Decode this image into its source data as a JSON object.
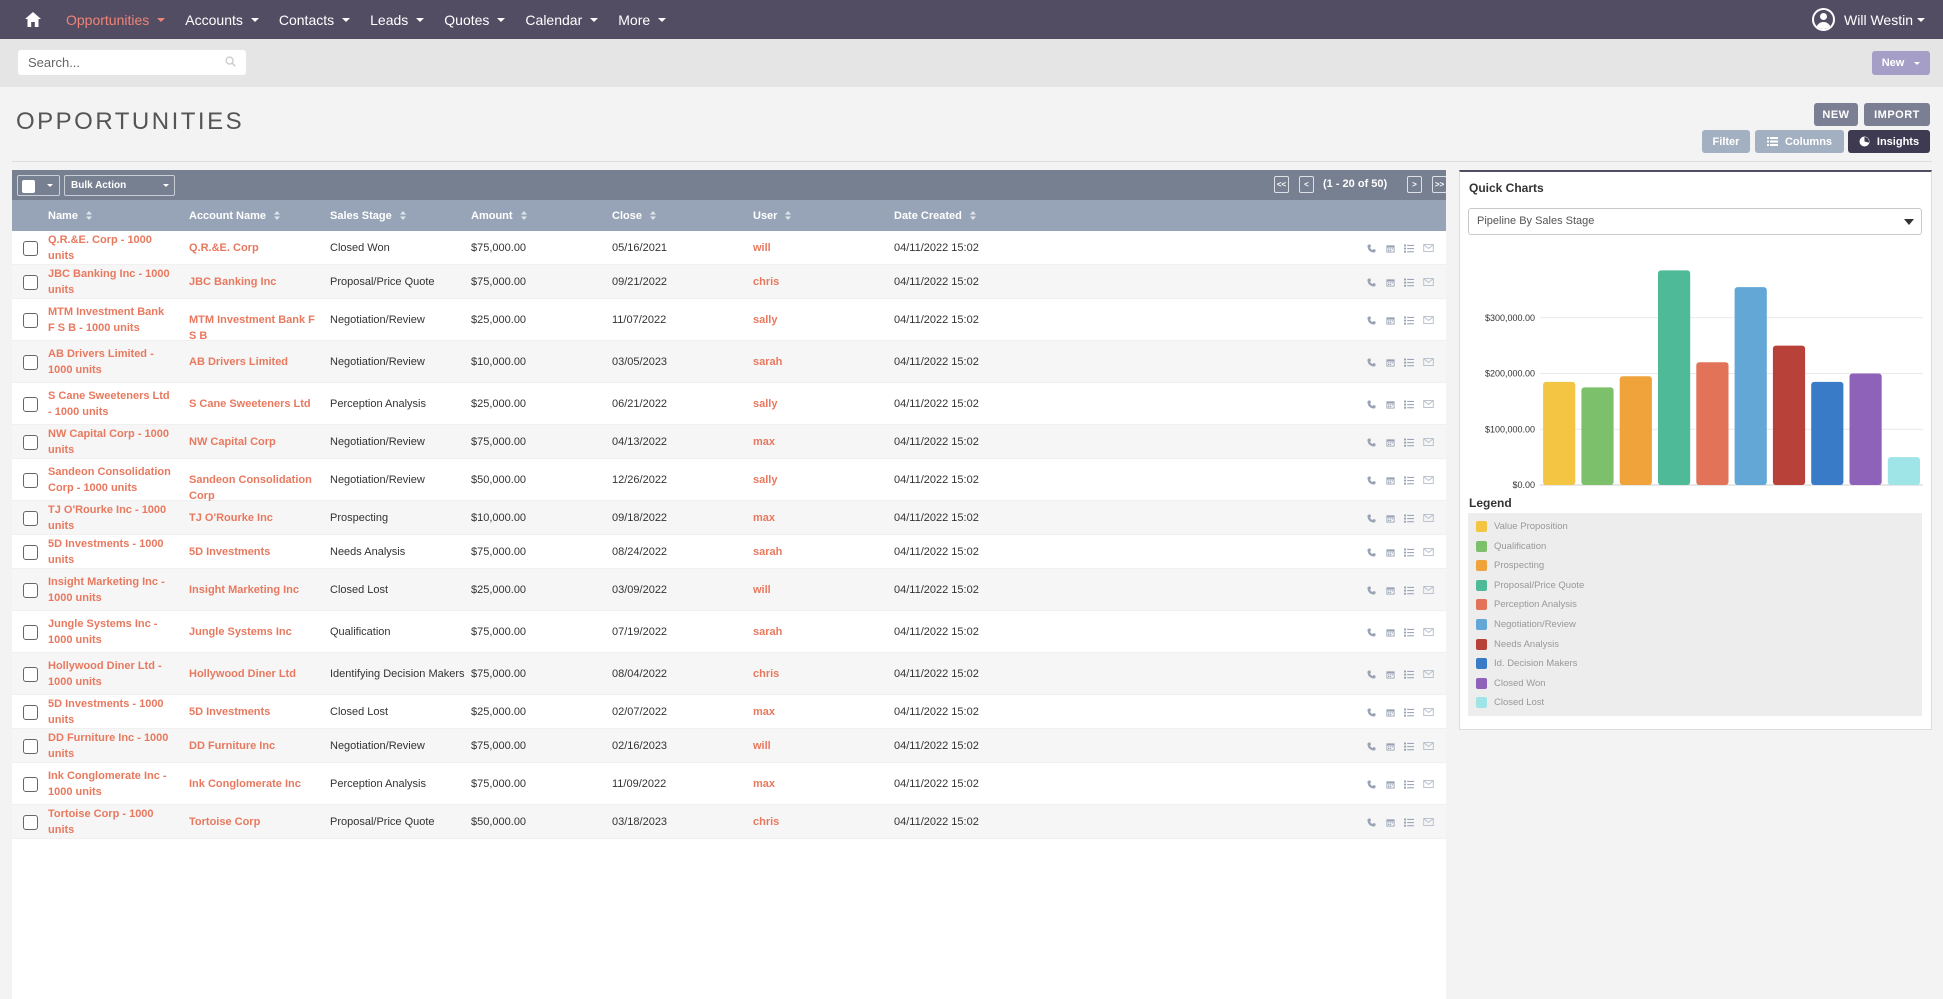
{
  "nav": {
    "items": [
      {
        "label": "Opportunities",
        "active": true
      },
      {
        "label": "Accounts",
        "active": false
      },
      {
        "label": "Contacts",
        "active": false
      },
      {
        "label": "Leads",
        "active": false
      },
      {
        "label": "Quotes",
        "active": false
      },
      {
        "label": "Calendar",
        "active": false
      },
      {
        "label": "More",
        "active": false
      }
    ],
    "user_name": "Will Westin"
  },
  "search": {
    "placeholder": "Search..."
  },
  "new_menu_label": "New",
  "page_title": "OPPORTUNITIES",
  "actions": {
    "new": "NEW",
    "import": "IMPORT",
    "filter": "Filter",
    "columns": "Columns",
    "insights": "Insights"
  },
  "list": {
    "bulk_action": "Bulk Action",
    "pagination": "(1 - 20 of 50)",
    "pager_buttons": [
      "<<",
      "<",
      ">",
      ">>"
    ],
    "columns": [
      "Name",
      "Account Name",
      "Sales Stage",
      "Amount",
      "Close",
      "User",
      "Date Created"
    ],
    "rows": [
      {
        "name": "Q.R.&E. Corp - 1000 units",
        "account": "Q.R.&E. Corp",
        "stage": "Closed Won",
        "amount": "$75,000.00",
        "close": "05/16/2021",
        "user": "will",
        "created": "04/11/2022 15:02"
      },
      {
        "name": "JBC Banking Inc - 1000 units",
        "account": "JBC Banking Inc",
        "stage": "Proposal/Price Quote",
        "amount": "$75,000.00",
        "close": "09/21/2022",
        "user": "chris",
        "created": "04/11/2022 15:02"
      },
      {
        "name": "MTM Investment Bank F S B - 1000 units",
        "account": "MTM Investment Bank F S B",
        "stage": "Negotiation/Review",
        "amount": "$25,000.00",
        "close": "11/07/2022",
        "user": "sally",
        "created": "04/11/2022 15:02"
      },
      {
        "name": "AB Drivers Limited - 1000 units",
        "account": "AB Drivers Limited",
        "stage": "Negotiation/Review",
        "amount": "$10,000.00",
        "close": "03/05/2023",
        "user": "sarah",
        "created": "04/11/2022 15:02"
      },
      {
        "name": "S Cane Sweeteners Ltd - 1000 units",
        "account": "S Cane Sweeteners Ltd",
        "stage": "Perception Analysis",
        "amount": "$25,000.00",
        "close": "06/21/2022",
        "user": "sally",
        "created": "04/11/2022 15:02"
      },
      {
        "name": "NW Capital Corp - 1000 units",
        "account": "NW Capital Corp",
        "stage": "Negotiation/Review",
        "amount": "$75,000.00",
        "close": "04/13/2022",
        "user": "max",
        "created": "04/11/2022 15:02"
      },
      {
        "name": "Sandeon Consolidation Corp - 1000 units",
        "account": "Sandeon Consolidation Corp",
        "stage": "Negotiation/Review",
        "amount": "$50,000.00",
        "close": "12/26/2022",
        "user": "sally",
        "created": "04/11/2022 15:02"
      },
      {
        "name": "TJ O'Rourke Inc - 1000 units",
        "account": "TJ O'Rourke Inc",
        "stage": "Prospecting",
        "amount": "$10,000.00",
        "close": "09/18/2022",
        "user": "max",
        "created": "04/11/2022 15:02"
      },
      {
        "name": "5D Investments - 1000 units",
        "account": "5D Investments",
        "stage": "Needs Analysis",
        "amount": "$75,000.00",
        "close": "08/24/2022",
        "user": "sarah",
        "created": "04/11/2022 15:02"
      },
      {
        "name": "Insight Marketing Inc - 1000 units",
        "account": "Insight Marketing Inc",
        "stage": "Closed Lost",
        "amount": "$25,000.00",
        "close": "03/09/2022",
        "user": "will",
        "created": "04/11/2022 15:02"
      },
      {
        "name": "Jungle Systems Inc - 1000 units",
        "account": "Jungle Systems Inc",
        "stage": "Qualification",
        "amount": "$75,000.00",
        "close": "07/19/2022",
        "user": "sarah",
        "created": "04/11/2022 15:02"
      },
      {
        "name": "Hollywood Diner Ltd - 1000 units",
        "account": "Hollywood Diner Ltd",
        "stage": "Identifying Decision Makers",
        "amount": "$75,000.00",
        "close": "08/04/2022",
        "user": "chris",
        "created": "04/11/2022 15:02"
      },
      {
        "name": "5D Investments - 1000 units",
        "account": "5D Investments",
        "stage": "Closed Lost",
        "amount": "$25,000.00",
        "close": "02/07/2022",
        "user": "max",
        "created": "04/11/2022 15:02"
      },
      {
        "name": "DD Furniture Inc - 1000 units",
        "account": "DD Furniture Inc",
        "stage": "Negotiation/Review",
        "amount": "$75,000.00",
        "close": "02/16/2023",
        "user": "will",
        "created": "04/11/2022 15:02"
      },
      {
        "name": "Ink Conglomerate Inc - 1000 units",
        "account": "Ink Conglomerate Inc",
        "stage": "Perception Analysis",
        "amount": "$75,000.00",
        "close": "11/09/2022",
        "user": "max",
        "created": "04/11/2022 15:02"
      },
      {
        "name": "Tortoise Corp - 1000 units",
        "account": "Tortoise Corp",
        "stage": "Proposal/Price Quote",
        "amount": "$50,000.00",
        "close": "03/18/2023",
        "user": "chris",
        "created": "04/11/2022 15:02"
      }
    ]
  },
  "quick_charts": {
    "title": "Quick Charts",
    "selected_chart": "Pipeline By Sales Stage",
    "legend_title": "Legend"
  },
  "chart_data": {
    "type": "bar",
    "title": "",
    "xlabel": "",
    "ylabel": "",
    "ylim": [
      0,
      400000
    ],
    "y_ticks": [
      "$0.00",
      "$100,000.00",
      "$200,000.00",
      "$300,000.00"
    ],
    "y_tick_values": [
      0,
      100000,
      200000,
      300000
    ],
    "grid": true,
    "legend_position": "bottom",
    "categories": [
      "Value Proposition",
      "Qualification",
      "Prospecting",
      "Proposal/Price Quote",
      "Perception Analysis",
      "Negotiation/Review",
      "Needs Analysis",
      "Id. Decision Makers",
      "Closed Won",
      "Closed Lost"
    ],
    "values": [
      185000,
      175000,
      195000,
      385000,
      220000,
      355000,
      250000,
      185000,
      200000,
      50000
    ],
    "colors": [
      "#f4c542",
      "#7dc06b",
      "#f0a33b",
      "#4fba97",
      "#e27359",
      "#63a7d6",
      "#b8413a",
      "#3a7bc8",
      "#8e62b8",
      "#9fe4e7"
    ]
  },
  "colors": {
    "nav_bg": "#534d64",
    "accent": "#f08377",
    "link": "#e8795f",
    "list_header": "#97a4b7",
    "toolbar": "#778091"
  },
  "icons": [
    "home-icon",
    "user-avatar-icon",
    "search-icon",
    "phone-icon",
    "calendar-icon",
    "task-icon",
    "email-icon",
    "columns-icon",
    "insights-icon",
    "sort-icon"
  ]
}
